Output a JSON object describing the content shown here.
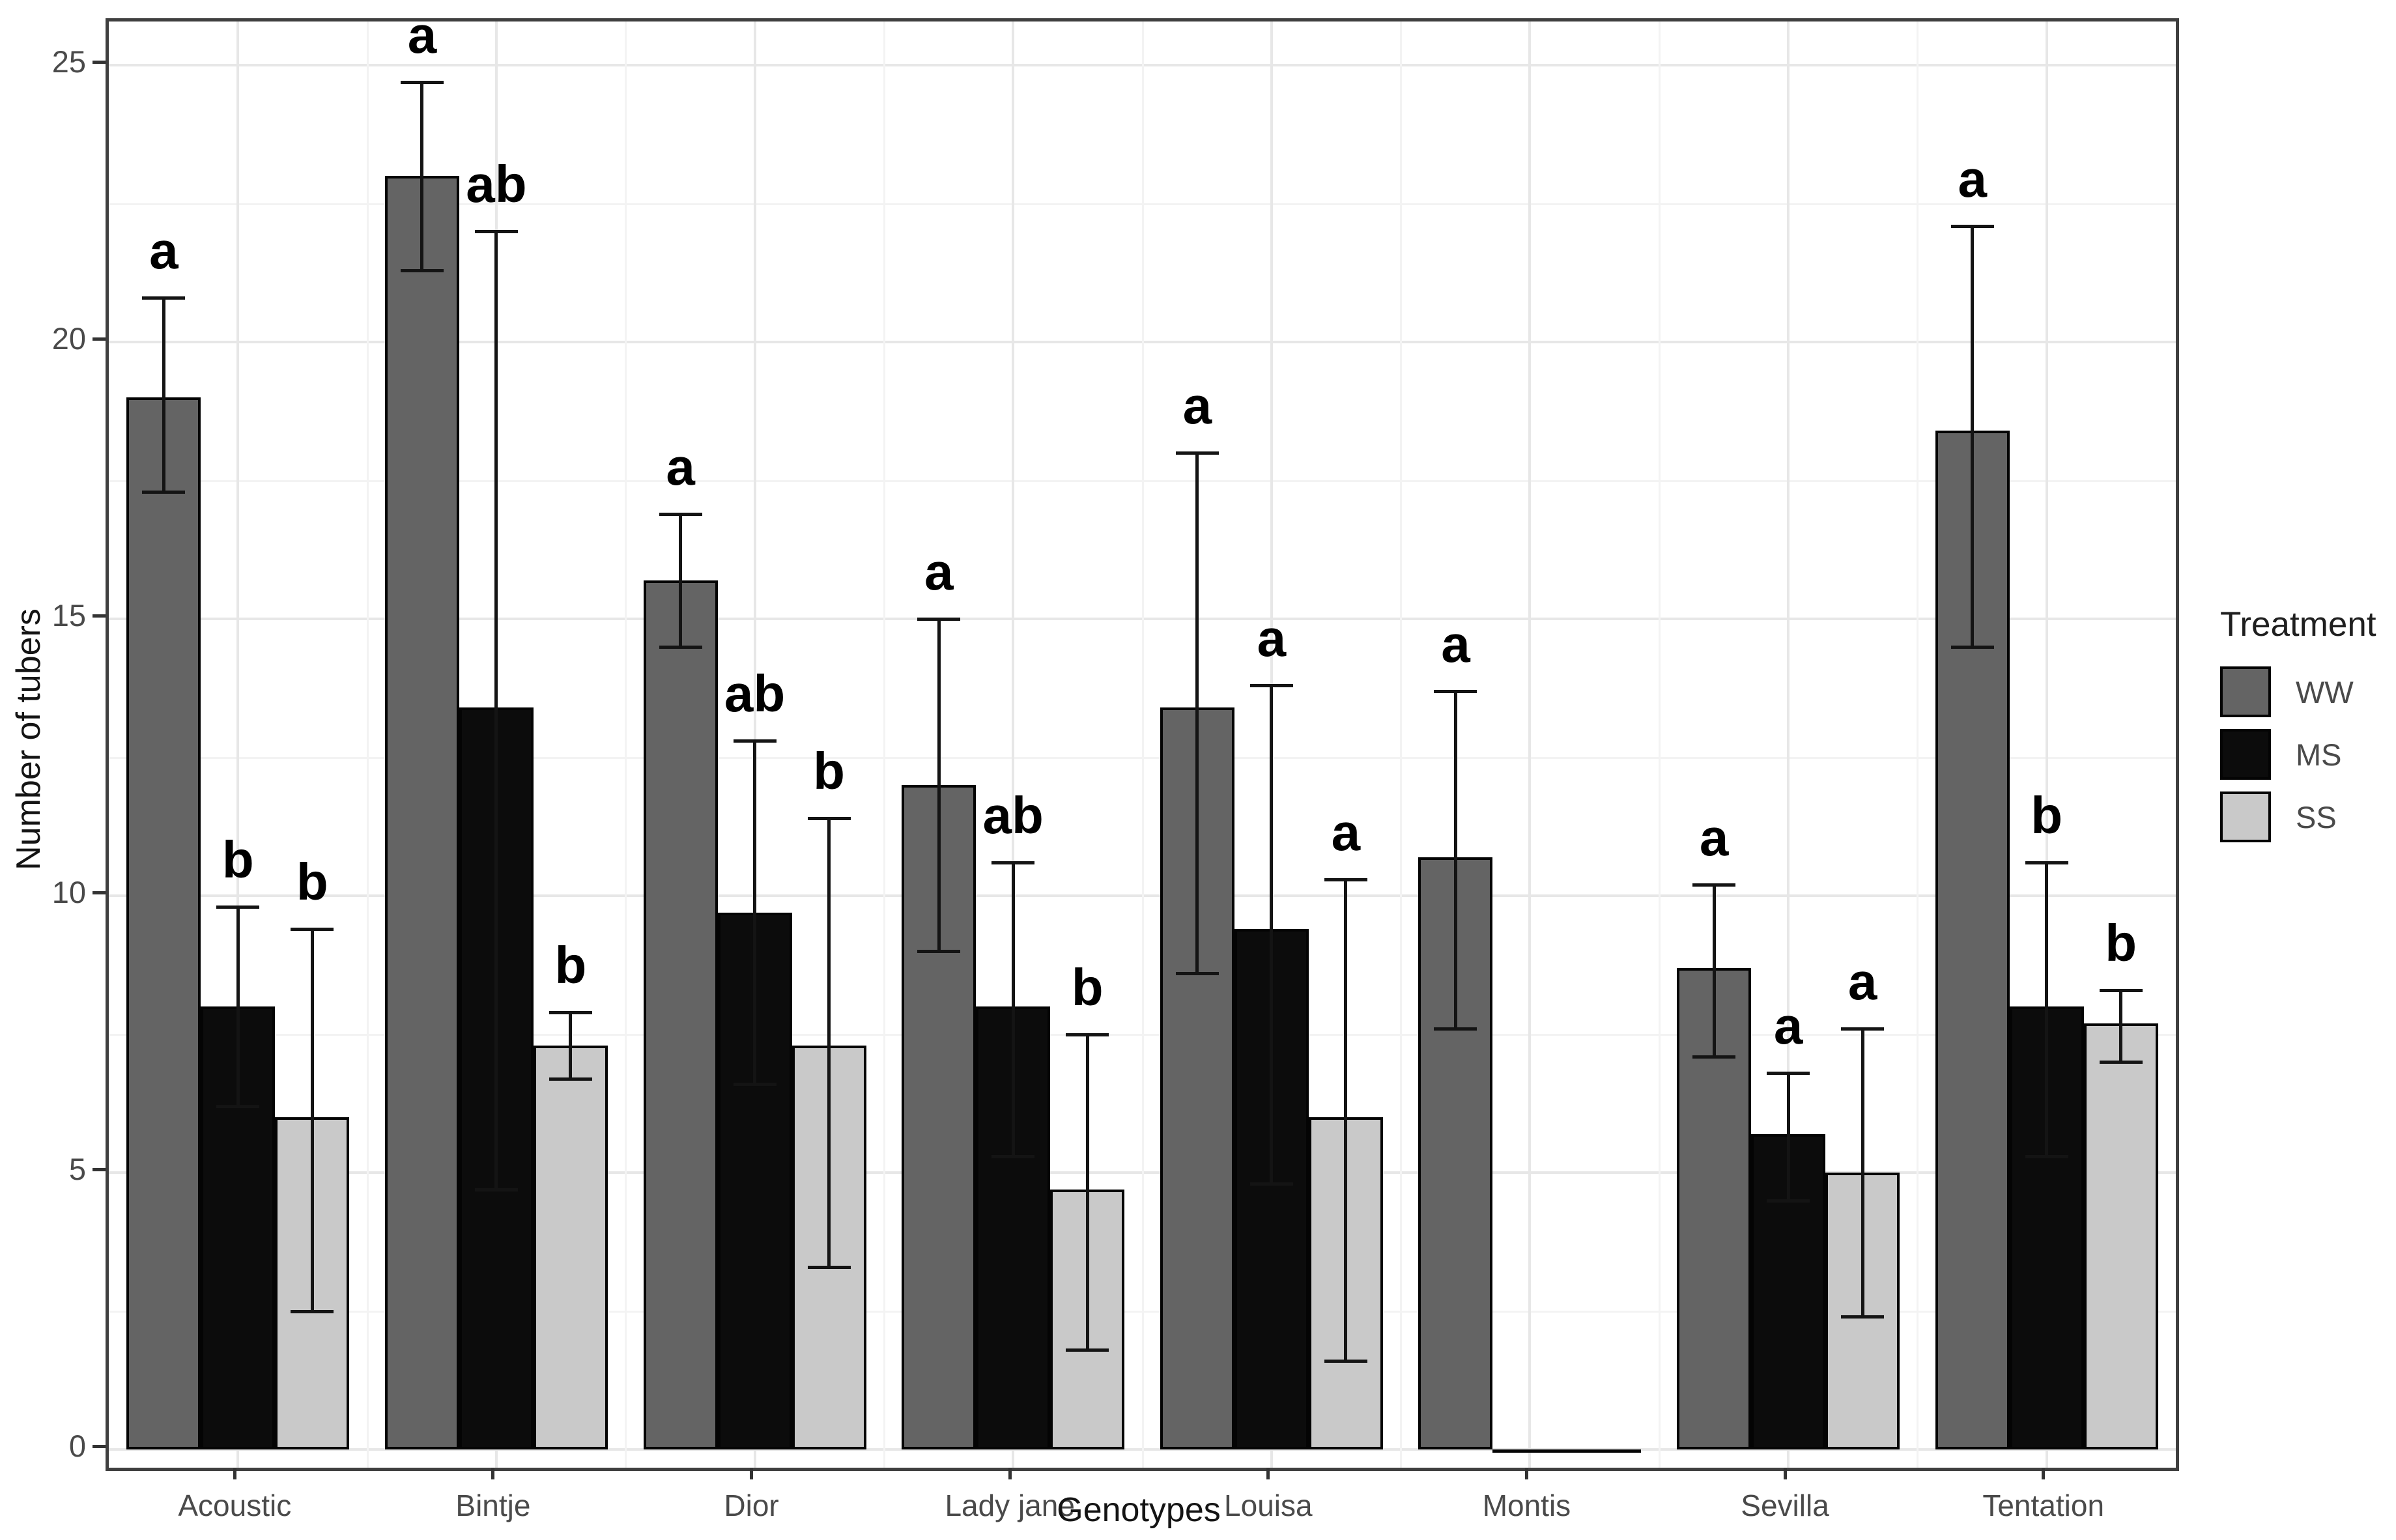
{
  "chart_data": {
    "type": "bar",
    "title": "",
    "xlabel": "Genotypes",
    "ylabel": "Number of tubers",
    "legend_title": "Treatment",
    "legend_position": "right",
    "grid": true,
    "categories": [
      "Acoustic",
      "Bintje",
      "Dior",
      "Lady jane",
      "Louisa",
      "Montis",
      "Sevilla",
      "Tentation"
    ],
    "y_ticks": [
      0,
      5,
      10,
      15,
      20,
      25
    ],
    "y_minor_ticks": [
      2.5,
      7.5,
      12.5,
      17.5,
      22.5
    ],
    "ylim": [
      -0.35,
      25.8
    ],
    "series": [
      {
        "name": "WW",
        "color": "#646464",
        "values": [
          19.0,
          23.0,
          15.7,
          12.0,
          13.4,
          10.7,
          8.7,
          18.4
        ],
        "err_low": [
          17.3,
          21.3,
          14.5,
          9.0,
          8.6,
          7.6,
          7.1,
          14.5
        ],
        "err_high": [
          20.8,
          24.7,
          16.9,
          15.0,
          18.0,
          13.7,
          10.2,
          22.1
        ],
        "letters": [
          "a",
          "a",
          "a",
          "a",
          "a",
          "a",
          "a",
          "a"
        ]
      },
      {
        "name": "MS",
        "color": "#0c0c0c",
        "values": [
          8.0,
          13.4,
          9.7,
          8.0,
          9.4,
          0,
          5.7,
          8.0
        ],
        "err_low": [
          6.2,
          4.7,
          6.6,
          5.3,
          4.8,
          null,
          4.5,
          5.3
        ],
        "err_high": [
          9.8,
          22.0,
          12.8,
          10.6,
          13.8,
          null,
          6.8,
          10.6
        ],
        "letters": [
          "b",
          "ab",
          "ab",
          "ab",
          "a",
          "",
          "a",
          "b"
        ]
      },
      {
        "name": "SS",
        "color": "#c9c9c9",
        "values": [
          6.0,
          7.3,
          7.3,
          4.7,
          6.0,
          0,
          5.0,
          7.7
        ],
        "err_low": [
          2.5,
          6.7,
          3.3,
          1.8,
          1.6,
          null,
          2.4,
          7.0
        ],
        "err_high": [
          9.4,
          7.9,
          11.4,
          7.5,
          10.3,
          null,
          7.6,
          8.3
        ],
        "letters": [
          "b",
          "b",
          "b",
          "b",
          "a",
          "",
          "a",
          "b"
        ]
      }
    ]
  }
}
